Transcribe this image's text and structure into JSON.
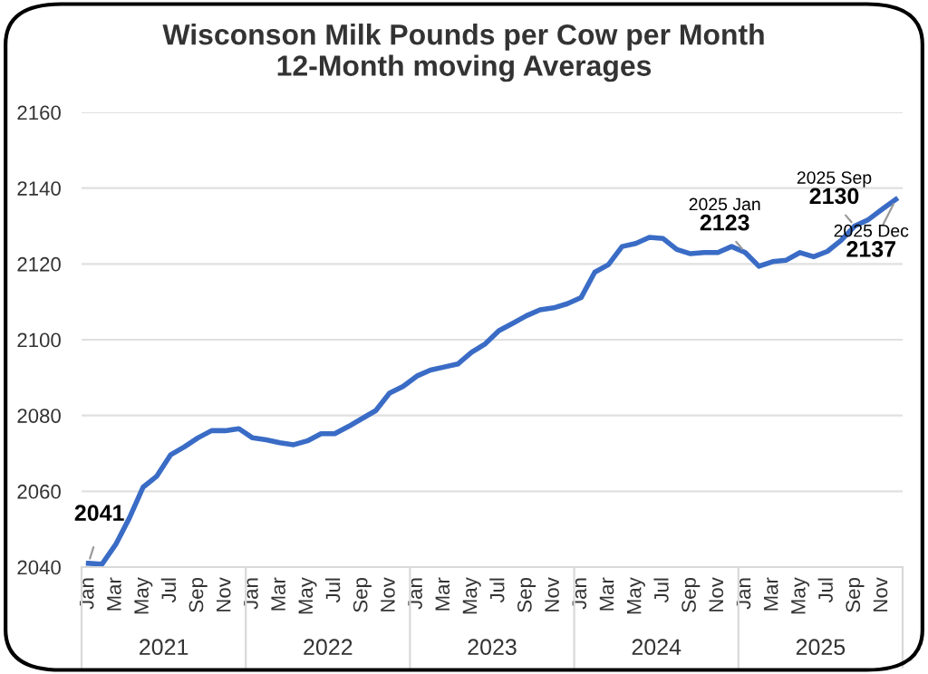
{
  "chart_data": {
    "type": "line",
    "title": "Wisconson Milk Pounds per Cow per Month\n12-Month moving Averages",
    "categories": [
      "Jan",
      null,
      "Mar",
      null,
      "May",
      null,
      "Jul",
      null,
      "Sep",
      null,
      "Nov",
      null,
      "Jan",
      null,
      "Mar",
      null,
      "May",
      null,
      "Jul",
      null,
      "Sep",
      null,
      "Nov",
      null,
      "Jan",
      null,
      "Mar",
      null,
      "May",
      null,
      "Jul",
      null,
      "Sep",
      null,
      "Nov",
      null,
      "Jan",
      null,
      "Mar",
      null,
      "May",
      null,
      "Jul",
      null,
      "Sep",
      null,
      "Nov",
      null,
      "Jan",
      null,
      "Mar",
      null,
      "May",
      null,
      "Jul",
      null,
      "Sep",
      null,
      "Nov",
      null
    ],
    "series": [
      {
        "color": "#3a6cc6",
        "values": [
          2041,
          2040.8,
          2046,
          2053,
          2061.1,
          2064,
          2069.6,
          2071.7,
          2074.1,
          2076,
          2076,
          2076.5,
          2074.1,
          2073.6,
          2072.8,
          2072.3,
          2073.3,
          2075.2,
          2075.2,
          2077.1,
          2079.2,
          2081.3,
          2085.9,
          2087.7,
          2090.4,
          2092,
          2092.8,
          2093.6,
          2096.7,
          2098.9,
          2102.4,
          2104.3,
          2106.3,
          2107.9,
          2108.4,
          2109.5,
          2111.1,
          2117.8,
          2119.8,
          2124.6,
          2125.4,
          2127,
          2126.7,
          2123.8,
          2122.7,
          2123,
          2123,
          2124.6,
          2123,
          2119.4,
          2120.6,
          2121,
          2123,
          2121.9,
          2123.3,
          2126.2,
          2130,
          2131.7,
          2134.4,
          2137
        ],
        "value_labels": [
          "2041",
          null,
          null,
          null,
          null,
          null,
          null,
          null,
          null,
          null,
          null,
          null,
          null,
          null,
          null,
          null,
          null,
          null,
          null,
          null,
          null,
          null,
          null,
          null,
          null,
          null,
          null,
          null,
          null,
          null,
          null,
          null,
          null,
          null,
          null,
          null,
          null,
          null,
          null,
          null,
          null,
          null,
          null,
          null,
          null,
          null,
          null,
          null,
          "2025 Jan\n2123",
          null,
          null,
          null,
          null,
          null,
          null,
          null,
          "2025 Sep\n2130",
          null,
          null,
          "2025 Dec\n2137"
        ]
      }
    ],
    "annotations": [
      "2021",
      "2022",
      "2023",
      "2024",
      "2025"
    ],
    "ylim": [
      2040,
      2160
    ],
    "yticks": [
      2040,
      2060,
      2080,
      2100,
      2120,
      2140,
      2160
    ],
    "grid": "y",
    "legend": false,
    "marker": "none",
    "line_style": "solid"
  }
}
